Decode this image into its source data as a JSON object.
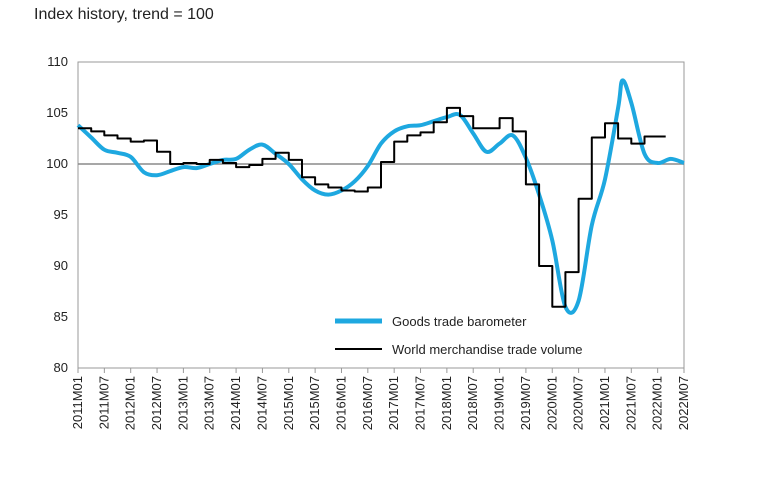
{
  "chart_data": {
    "type": "line",
    "title": "Index history, trend = 100",
    "xlabel": "",
    "ylabel": "",
    "ylim": [
      80,
      110
    ],
    "yticks": [
      80,
      85,
      90,
      95,
      100,
      105,
      110
    ],
    "x_tick_labels": [
      "2011M01",
      "2011M07",
      "2012M01",
      "2012M07",
      "2013M01",
      "2013M07",
      "2014M01",
      "2014M07",
      "2015M01",
      "2015M07",
      "2016M01",
      "2016M07",
      "2017M01",
      "2017M07",
      "2018M01",
      "2018M07",
      "2019M01",
      "2019M07",
      "2020M01",
      "2020M07",
      "2021M01",
      "2021M07",
      "2022M01",
      "2022M07"
    ],
    "reference_line": 100,
    "legend_position": "bottom-right",
    "grid": false,
    "series": [
      {
        "name": "Goods trade barometer",
        "color": "#1ea8e0",
        "style": "smooth",
        "points": [
          [
            "2011M01",
            103.8
          ],
          [
            "2011M04",
            102.6
          ],
          [
            "2011M07",
            101.4
          ],
          [
            "2011M10",
            101.1
          ],
          [
            "2012M01",
            100.7
          ],
          [
            "2012M04",
            99.2
          ],
          [
            "2012M07",
            98.9
          ],
          [
            "2012M10",
            99.3
          ],
          [
            "2013M01",
            99.7
          ],
          [
            "2013M04",
            99.6
          ],
          [
            "2013M07",
            100.0
          ],
          [
            "2013M10",
            100.4
          ],
          [
            "2014M01",
            100.5
          ],
          [
            "2014M04",
            101.4
          ],
          [
            "2014M07",
            101.9
          ],
          [
            "2014M10",
            101.0
          ],
          [
            "2015M01",
            100.0
          ],
          [
            "2015M04",
            98.5
          ],
          [
            "2015M07",
            97.4
          ],
          [
            "2015M10",
            97.0
          ],
          [
            "2016M01",
            97.4
          ],
          [
            "2016M04",
            98.3
          ],
          [
            "2016M07",
            99.8
          ],
          [
            "2016M10",
            102.0
          ],
          [
            "2017M01",
            103.2
          ],
          [
            "2017M04",
            103.7
          ],
          [
            "2017M07",
            103.8
          ],
          [
            "2017M10",
            104.2
          ],
          [
            "2018M01",
            104.6
          ],
          [
            "2018M04",
            104.8
          ],
          [
            "2018M07",
            103.0
          ],
          [
            "2018M10",
            101.2
          ],
          [
            "2019M01",
            102.0
          ],
          [
            "2019M04",
            102.8
          ],
          [
            "2019M07",
            100.6
          ],
          [
            "2019M10",
            97.0
          ],
          [
            "2020M01",
            92.5
          ],
          [
            "2020M04",
            86.0
          ],
          [
            "2020M07",
            86.6
          ],
          [
            "2020M10",
            94.0
          ],
          [
            "2021M01",
            98.5
          ],
          [
            "2021M04",
            105.5
          ],
          [
            "2021M05",
            108.2
          ],
          [
            "2021M07",
            106.0
          ],
          [
            "2021M10",
            101.0
          ],
          [
            "2022M01",
            100.1
          ],
          [
            "2022M04",
            100.5
          ],
          [
            "2022M07",
            100.1
          ]
        ]
      },
      {
        "name": "World merchandise trade volume",
        "color": "#000000",
        "style": "step",
        "points": [
          [
            "2011M01",
            103.5
          ],
          [
            "2011M04",
            103.2
          ],
          [
            "2011M07",
            102.8
          ],
          [
            "2011M10",
            102.5
          ],
          [
            "2012M01",
            102.2
          ],
          [
            "2012M04",
            102.3
          ],
          [
            "2012M07",
            101.2
          ],
          [
            "2012M10",
            100.0
          ],
          [
            "2013M01",
            100.1
          ],
          [
            "2013M04",
            100.0
          ],
          [
            "2013M07",
            100.4
          ],
          [
            "2013M10",
            100.1
          ],
          [
            "2014M01",
            99.7
          ],
          [
            "2014M04",
            99.9
          ],
          [
            "2014M07",
            100.5
          ],
          [
            "2014M10",
            101.1
          ],
          [
            "2015M01",
            100.4
          ],
          [
            "2015M04",
            98.7
          ],
          [
            "2015M07",
            98.0
          ],
          [
            "2015M10",
            97.7
          ],
          [
            "2016M01",
            97.4
          ],
          [
            "2016M04",
            97.3
          ],
          [
            "2016M07",
            97.7
          ],
          [
            "2016M10",
            100.2
          ],
          [
            "2017M01",
            102.2
          ],
          [
            "2017M04",
            102.8
          ],
          [
            "2017M07",
            103.1
          ],
          [
            "2017M10",
            104.1
          ],
          [
            "2018M01",
            105.5
          ],
          [
            "2018M04",
            104.7
          ],
          [
            "2018M07",
            103.5
          ],
          [
            "2018M10",
            103.5
          ],
          [
            "2019M01",
            104.5
          ],
          [
            "2019M04",
            103.2
          ],
          [
            "2019M07",
            98.0
          ],
          [
            "2019M10",
            90.0
          ],
          [
            "2020M01",
            86.0
          ],
          [
            "2020M04",
            89.4
          ],
          [
            "2020M07",
            96.6
          ],
          [
            "2020M10",
            102.6
          ],
          [
            "2021M01",
            104.0
          ],
          [
            "2021M04",
            102.5
          ],
          [
            "2021M07",
            102.0
          ],
          [
            "2021M10",
            102.7
          ],
          [
            "2022M01",
            102.7
          ]
        ]
      }
    ]
  }
}
